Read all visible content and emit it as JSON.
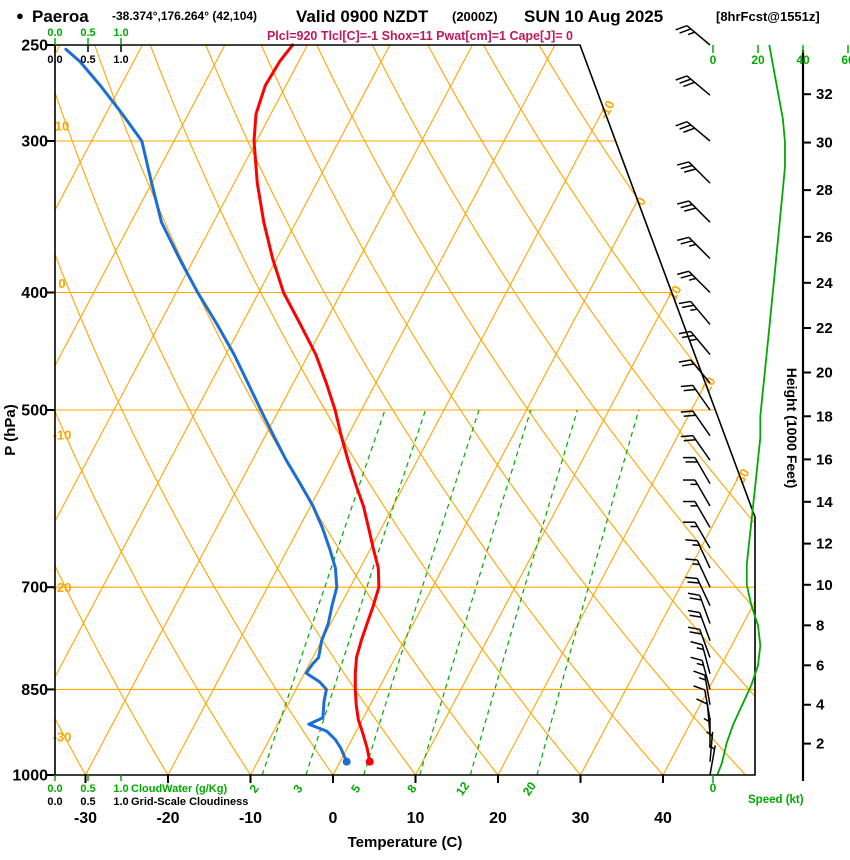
{
  "header": {
    "bullet": "●",
    "station": "Paeroa",
    "coords": "-38.374°,176.264° (42,104)",
    "valid": "Valid 0900 NZDT",
    "valid_utc": "(2000Z)",
    "date": "SUN 10 Aug 2025",
    "fcst": "[8hrFcst@1551z]",
    "params": "Plcl=920 Tlcl[C]=-1 Shox=11 Pwat[cm]=1 Cape[J]= 0"
  },
  "axes": {
    "pressure_label": "P (hPa)",
    "temperature_label": "Temperature (C)",
    "height_label": "Height (1000 Feet)",
    "speed_label": "Speed (kt)",
    "cloudwater_label": "CloudWater (g/Kg)",
    "cloudiness_label": "Grid-Scale Cloudiness",
    "cloud_scale_ticks": [
      "0.0",
      "0.5",
      "1.0"
    ],
    "pressure_ticks": [
      250,
      300,
      400,
      500,
      700,
      850,
      1000
    ],
    "temperature_ticks": [
      -30,
      -20,
      -10,
      0,
      10,
      20,
      30,
      40
    ],
    "height_ticks": [
      2,
      4,
      6,
      8,
      10,
      12,
      14,
      16,
      18,
      20,
      22,
      24,
      26,
      28,
      30,
      32
    ],
    "speed_ticks": [
      0,
      20,
      40,
      60
    ]
  },
  "chart_data": {
    "type": "line",
    "subtype": "skew-T log-P atmospheric sounding",
    "title": "Paeroa sounding, valid 0900 NZDT (2000Z) Sun 10 Aug 2025, 8hr forecast",
    "pressure_axis_hpa": [
      1000,
      250
    ],
    "temperature_axis_c": [
      -30,
      40
    ],
    "isobars_hpa": [
      300,
      400,
      500,
      700,
      850,
      1000
    ],
    "isotherm_step_c": 10,
    "isotherm_labels_c": [
      -10,
      0,
      10,
      20,
      30
    ],
    "dry_adiabat_step_c": 10,
    "dry_adiabat_labels_c": [
      -30,
      -20,
      -10,
      0,
      10
    ],
    "mixing_ratio_lines_gkg": [
      2,
      3,
      5,
      8,
      12,
      20
    ],
    "temperature_profile_p_c": [
      [
        975,
        3.6
      ],
      [
        950,
        2.4
      ],
      [
        925,
        1.0
      ],
      [
        900,
        -0.5
      ],
      [
        875,
        -1.7
      ],
      [
        850,
        -2.8
      ],
      [
        825,
        -3.8
      ],
      [
        800,
        -4.7
      ],
      [
        775,
        -5.2
      ],
      [
        750,
        -5.6
      ],
      [
        725,
        -6.0
      ],
      [
        700,
        -6.5
      ],
      [
        675,
        -7.8
      ],
      [
        650,
        -9.7
      ],
      [
        625,
        -11.6
      ],
      [
        600,
        -13.6
      ],
      [
        575,
        -16.0
      ],
      [
        550,
        -18.4
      ],
      [
        525,
        -20.8
      ],
      [
        500,
        -23.2
      ],
      [
        475,
        -26.0
      ],
      [
        450,
        -29.1
      ],
      [
        425,
        -32.9
      ],
      [
        400,
        -37.0
      ],
      [
        375,
        -40.5
      ],
      [
        350,
        -43.9
      ],
      [
        325,
        -47.2
      ],
      [
        300,
        -50.3
      ],
      [
        285,
        -51.8
      ],
      [
        270,
        -52.5
      ],
      [
        258,
        -52.3
      ],
      [
        250,
        -51.8
      ]
    ],
    "dewpoint_profile_p_c": [
      [
        975,
        0.8
      ],
      [
        950,
        -0.8
      ],
      [
        935,
        -2.0
      ],
      [
        920,
        -3.6
      ],
      [
        908,
        -6.2
      ],
      [
        897,
        -4.9
      ],
      [
        885,
        -5.3
      ],
      [
        870,
        -5.8
      ],
      [
        850,
        -6.3
      ],
      [
        838,
        -7.6
      ],
      [
        824,
        -9.8
      ],
      [
        810,
        -9.6
      ],
      [
        800,
        -9.3
      ],
      [
        775,
        -10.0
      ],
      [
        750,
        -10.3
      ],
      [
        725,
        -11.0
      ],
      [
        700,
        -11.6
      ],
      [
        675,
        -13.0
      ],
      [
        650,
        -15.0
      ],
      [
        625,
        -17.2
      ],
      [
        600,
        -19.7
      ],
      [
        575,
        -22.7
      ],
      [
        550,
        -25.9
      ],
      [
        525,
        -29.0
      ],
      [
        500,
        -32.2
      ],
      [
        475,
        -35.5
      ],
      [
        450,
        -39.0
      ],
      [
        425,
        -43.0
      ],
      [
        400,
        -47.4
      ],
      [
        375,
        -51.8
      ],
      [
        350,
        -56.3
      ],
      [
        325,
        -60.0
      ],
      [
        300,
        -63.9
      ],
      [
        285,
        -68.0
      ],
      [
        270,
        -72.5
      ],
      [
        258,
        -76.5
      ],
      [
        252,
        -79.0
      ]
    ],
    "wind_barbs_p_kt_dir": [
      [
        1000,
        3,
        10
      ],
      [
        975,
        5,
        5
      ],
      [
        950,
        6,
        360
      ],
      [
        925,
        8,
        355
      ],
      [
        900,
        11,
        350
      ],
      [
        875,
        13,
        350
      ],
      [
        850,
        15,
        345
      ],
      [
        825,
        17,
        345
      ],
      [
        800,
        20,
        340
      ],
      [
        775,
        21,
        340
      ],
      [
        750,
        20,
        340
      ],
      [
        725,
        18,
        335
      ],
      [
        700,
        15,
        335
      ],
      [
        675,
        15,
        335
      ],
      [
        650,
        16,
        330
      ],
      [
        625,
        16,
        330
      ],
      [
        600,
        17,
        330
      ],
      [
        575,
        18,
        330
      ],
      [
        550,
        19,
        325
      ],
      [
        525,
        20,
        325
      ],
      [
        500,
        21,
        325
      ],
      [
        475,
        22,
        320
      ],
      [
        450,
        24,
        320
      ],
      [
        425,
        25,
        320
      ],
      [
        400,
        26,
        315
      ],
      [
        375,
        27,
        315
      ],
      [
        350,
        28,
        315
      ],
      [
        325,
        30,
        315
      ],
      [
        300,
        32,
        310
      ],
      [
        275,
        30,
        310
      ],
      [
        250,
        26,
        310
      ]
    ],
    "speed_profile_kft_kt": [
      [
        0.4,
        2
      ],
      [
        1,
        4
      ],
      [
        2,
        6
      ],
      [
        3,
        9
      ],
      [
        4,
        13
      ],
      [
        5,
        17
      ],
      [
        6,
        20
      ],
      [
        7,
        21
      ],
      [
        8,
        20
      ],
      [
        9,
        17
      ],
      [
        10,
        15
      ],
      [
        11,
        15
      ],
      [
        12,
        16
      ],
      [
        13,
        17
      ],
      [
        14,
        18
      ],
      [
        15,
        19
      ],
      [
        16,
        20
      ],
      [
        17,
        21
      ],
      [
        18,
        21
      ],
      [
        19,
        22
      ],
      [
        20,
        23
      ],
      [
        21,
        24
      ],
      [
        22,
        25
      ],
      [
        23,
        26
      ],
      [
        24,
        27
      ],
      [
        25,
        28
      ],
      [
        26,
        29
      ],
      [
        27,
        30
      ],
      [
        28,
        31
      ],
      [
        29,
        32
      ],
      [
        30,
        32
      ],
      [
        31,
        31
      ],
      [
        32,
        29
      ],
      [
        33,
        27
      ],
      [
        34,
        25
      ]
    ],
    "colors": {
      "grid_orange": "#ffa500",
      "green": "#00aa00",
      "temperature_red": "#ff0000",
      "dewpoint_blue": "#1b6ed6",
      "params_magenta": "#c2185b",
      "frame_black": "#000000"
    }
  }
}
